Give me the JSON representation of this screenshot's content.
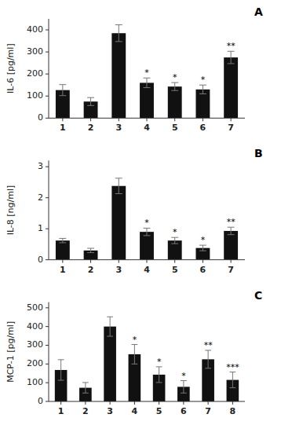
{
  "chart_data": [
    {
      "type": "bar",
      "title": "A",
      "ylabel": "IL-6 [pg/ml]",
      "categories": [
        "1",
        "2",
        "3",
        "4",
        "5",
        "6",
        "7"
      ],
      "values": [
        127,
        75,
        385,
        160,
        143,
        130,
        275
      ],
      "errors": [
        25,
        18,
        38,
        22,
        18,
        20,
        28
      ],
      "ylim": [
        0,
        450
      ],
      "yticks": [
        0,
        100,
        200,
        300,
        400
      ],
      "annotations": [
        {
          "text": "*",
          "category": "4"
        },
        {
          "text": "*",
          "category": "5"
        },
        {
          "text": "*",
          "category": "6"
        },
        {
          "text": "**",
          "category": "7"
        }
      ],
      "color": "#111111",
      "grid": false
    },
    {
      "type": "bar",
      "title": "B",
      "ylabel": "IL-8 [ng/ml]",
      "categories": [
        "1",
        "2",
        "3",
        "4",
        "5",
        "6",
        "7"
      ],
      "values": [
        0.62,
        0.3,
        2.38,
        0.9,
        0.62,
        0.38,
        0.93
      ],
      "errors": [
        0.07,
        0.07,
        0.25,
        0.12,
        0.1,
        0.09,
        0.12
      ],
      "ylim": [
        0,
        3.2
      ],
      "yticks": [
        0,
        1,
        2,
        3
      ],
      "annotations": [
        {
          "text": "*",
          "category": "4"
        },
        {
          "text": "*",
          "category": "5"
        },
        {
          "text": "*",
          "category": "6"
        },
        {
          "text": "**",
          "category": "7"
        }
      ],
      "color": "#111111",
      "grid": false
    },
    {
      "type": "bar",
      "title": "C",
      "ylabel": "MCP-1 [pg/ml]",
      "categories": [
        "1",
        "2",
        "3",
        "4",
        "5",
        "6",
        "7",
        "8"
      ],
      "values": [
        168,
        73,
        400,
        252,
        143,
        78,
        225,
        115
      ],
      "errors": [
        55,
        28,
        52,
        52,
        42,
        33,
        48,
        42
      ],
      "ylim": [
        0,
        530
      ],
      "yticks": [
        0,
        100,
        200,
        300,
        400,
        500
      ],
      "annotations": [
        {
          "text": "*",
          "category": "4"
        },
        {
          "text": "*",
          "category": "5"
        },
        {
          "text": "*",
          "category": "6"
        },
        {
          "text": "**",
          "category": "7"
        },
        {
          "text": "***",
          "category": "8"
        }
      ],
      "color": "#111111",
      "grid": false
    }
  ]
}
